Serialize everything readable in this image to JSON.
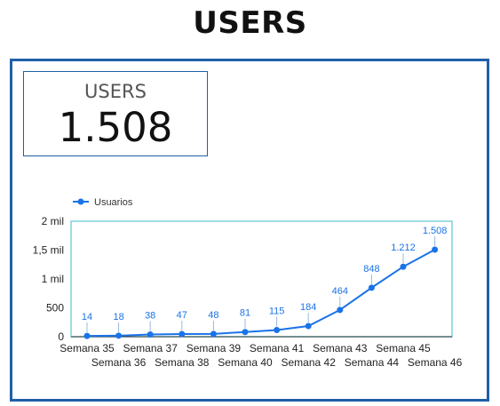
{
  "page": {
    "title": "USERS"
  },
  "scorecard": {
    "label": "USERS",
    "value": "1.508"
  },
  "chart_data": {
    "type": "line",
    "title": "",
    "xlabel": "",
    "ylabel": "",
    "categories": [
      "Semana 35",
      "Semana 36",
      "Semana 37",
      "Semana 38",
      "Semana 39",
      "Semana 40",
      "Semana 41",
      "Semana 42",
      "Semana 43",
      "Semana 44",
      "Semana 45",
      "Semana 46"
    ],
    "series": [
      {
        "name": "Usuarios",
        "values": [
          14,
          18,
          38,
          47,
          48,
          81,
          115,
          184,
          464,
          848,
          1212,
          1508
        ],
        "labels": [
          "14",
          "18",
          "38",
          "47",
          "48",
          "81",
          "115",
          "184",
          "464",
          "848",
          "1.212",
          "1.508"
        ]
      }
    ],
    "ylim": [
      0,
      2000
    ],
    "yticks": [
      0,
      500,
      1000,
      1500,
      2000
    ],
    "ytick_labels": [
      "0",
      "500",
      "1 mil",
      "1,5 mil",
      "2 mil"
    ],
    "legend_position": "top-left",
    "grid": false,
    "colors": {
      "line": "#1a73e8",
      "plot_border": "#7fd0dc",
      "label": "#1a73e8",
      "axis_text": "#222222"
    }
  }
}
